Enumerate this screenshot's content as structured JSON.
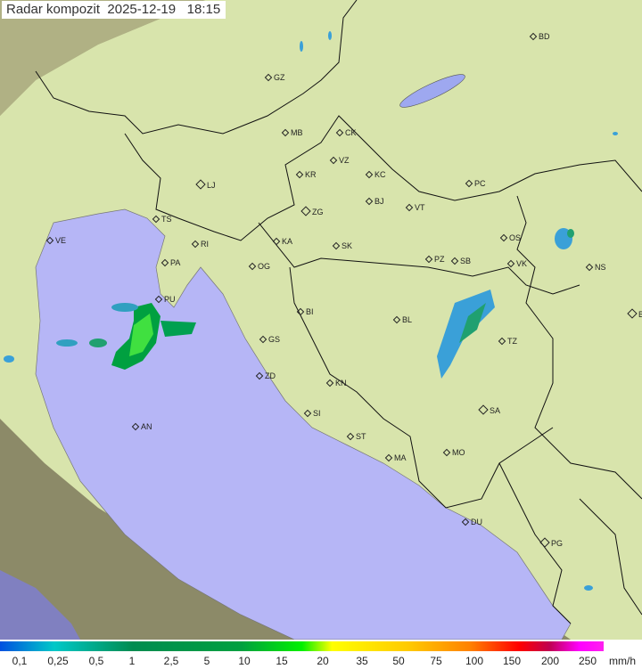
{
  "title": {
    "label": "Radar kompozit",
    "date": "2025-12-19",
    "time": "18:15"
  },
  "cities": [
    {
      "code": "GZ"
    },
    {
      "code": "BD"
    },
    {
      "code": "MB"
    },
    {
      "code": "CK"
    },
    {
      "code": "VZ"
    },
    {
      "code": "KR"
    },
    {
      "code": "KC"
    },
    {
      "code": "PC"
    },
    {
      "code": "LJ"
    },
    {
      "code": "ZG"
    },
    {
      "code": "BJ"
    },
    {
      "code": "VT"
    },
    {
      "code": "TS"
    },
    {
      "code": "VE"
    },
    {
      "code": "RI"
    },
    {
      "code": "KA"
    },
    {
      "code": "SK"
    },
    {
      "code": "OS"
    },
    {
      "code": "PA"
    },
    {
      "code": "OG"
    },
    {
      "code": "PZ"
    },
    {
      "code": "SB"
    },
    {
      "code": "VK"
    },
    {
      "code": "NS"
    },
    {
      "code": "PU"
    },
    {
      "code": "BI"
    },
    {
      "code": "BL"
    },
    {
      "code": "BG"
    },
    {
      "code": "TZ"
    },
    {
      "code": "GS"
    },
    {
      "code": "ZD"
    },
    {
      "code": "KN"
    },
    {
      "code": "SA"
    },
    {
      "code": "SI"
    },
    {
      "code": "AN"
    },
    {
      "code": "ST"
    },
    {
      "code": "MA"
    },
    {
      "code": "MO"
    },
    {
      "code": "DU"
    },
    {
      "code": "PG"
    }
  ],
  "legend": {
    "labels": [
      "0,1",
      "0,25",
      "0,5",
      "1",
      "2,5",
      "5",
      "10",
      "15",
      "20",
      "35",
      "50",
      "75",
      "100",
      "150",
      "200",
      "250"
    ],
    "unit": "mm/h"
  },
  "colors": {
    "sea": "#b4b4f8",
    "land": "#d6e6a8",
    "outside": "#8a8a6a",
    "rain_light": "#3aa0d8",
    "rain_mod": "#00b050",
    "rain_heavy": "#40e040"
  }
}
